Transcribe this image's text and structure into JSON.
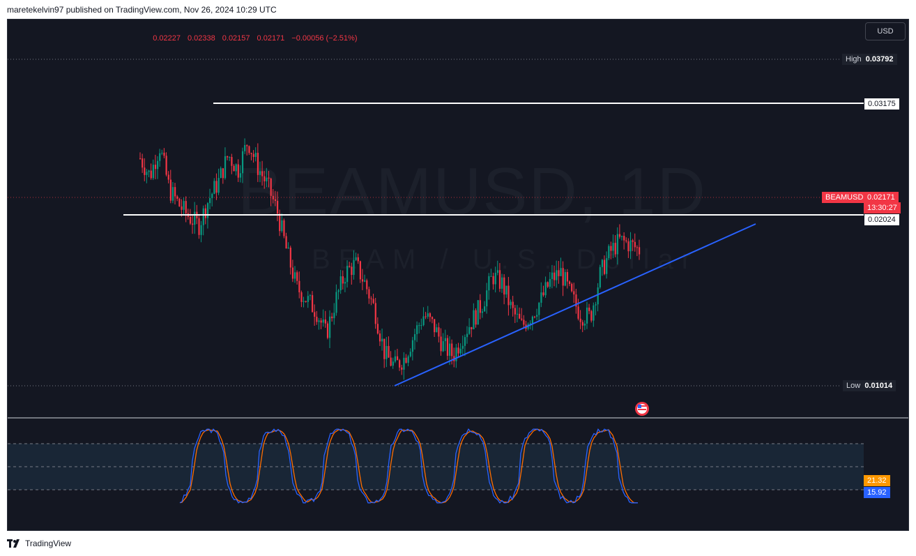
{
  "header": {
    "publish_text": "maretekelvin97 published on TradingView.com, Nov 26, 2024 10:29 UTC"
  },
  "ohlc": {
    "open": "0.02227",
    "high": "0.02338",
    "low": "0.02157",
    "close": "0.02171",
    "change": "−0.00056 (−2.51%)"
  },
  "currency_button": "USD",
  "watermark": {
    "symbol": "BEAMUSD, 1D",
    "subtitle": "BEAM / U.S. Dollar"
  },
  "price_axis": {
    "high_label": "High",
    "high_value": "0.03792",
    "resistance_value": "0.03175",
    "symbol_label": "BEAMUSD",
    "last_price": "0.02171",
    "countdown": "13:30:27",
    "support_value": "0.02024",
    "low_label": "Low",
    "low_value": "0.01014"
  },
  "indicator": {
    "k_value": "21.32",
    "d_value": "15.92"
  },
  "footer": {
    "brand": "TradingView"
  },
  "colors": {
    "background": "#141722",
    "bearish": "#f23645",
    "bullish": "#089981",
    "trendline": "#2962ff",
    "level": "#ffffff",
    "stoch_k": "#2962ff",
    "stoch_d": "#ff6d00"
  },
  "chart_data": {
    "type": "candlestick",
    "symbol": "BEAMUSD",
    "timeframe": "1D",
    "high": 0.03792,
    "low": 0.01014,
    "last": 0.02171,
    "horizontal_levels": [
      0.03175,
      0.02024
    ],
    "rising_trendline": [
      {
        "bar": 0,
        "price": 0.01014
      },
      {
        "bar": 1,
        "price": 0.0221
      }
    ],
    "close_path": [
      0.0295,
      0.028,
      0.0305,
      0.0268,
      0.0255,
      0.0245,
      0.0238,
      0.026,
      0.0275,
      0.0298,
      0.0285,
      0.031,
      0.0288,
      0.0272,
      0.025,
      0.0215,
      0.0185,
      0.0175,
      0.0165,
      0.0145,
      0.0175,
      0.0198,
      0.0205,
      0.0188,
      0.0165,
      0.0128,
      0.0118,
      0.0125,
      0.0145,
      0.0162,
      0.0152,
      0.0135,
      0.0127,
      0.0145,
      0.0158,
      0.0172,
      0.0195,
      0.0188,
      0.0165,
      0.0152,
      0.0162,
      0.0175,
      0.0192,
      0.0198,
      0.0178,
      0.0162,
      0.016,
      0.0196,
      0.0215,
      0.0225,
      0.0222,
      0.0217
    ]
  }
}
